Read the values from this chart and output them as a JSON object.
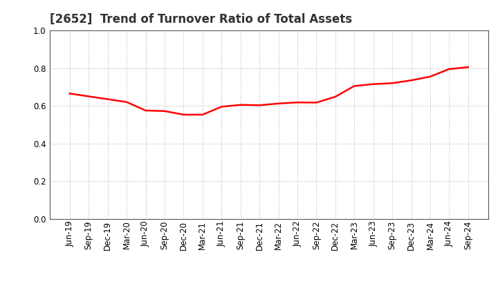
{
  "title": "[2652]  Trend of Turnover Ratio of Total Assets",
  "x_labels": [
    "Jun-19",
    "Sep-19",
    "Dec-19",
    "Mar-20",
    "Jun-20",
    "Sep-20",
    "Dec-20",
    "Mar-21",
    "Jun-21",
    "Sep-21",
    "Dec-21",
    "Mar-22",
    "Jun-22",
    "Sep-22",
    "Dec-22",
    "Mar-23",
    "Jun-23",
    "Sep-23",
    "Dec-23",
    "Mar-24",
    "Jun-24",
    "Sep-24"
  ],
  "y_values": [
    0.665,
    0.65,
    0.635,
    0.62,
    0.575,
    0.572,
    0.553,
    0.553,
    0.595,
    0.605,
    0.603,
    0.612,
    0.618,
    0.617,
    0.648,
    0.705,
    0.715,
    0.72,
    0.735,
    0.755,
    0.795,
    0.805
  ],
  "line_color": "#FF0000",
  "line_width": 1.8,
  "ylim": [
    0.0,
    1.0
  ],
  "yticks": [
    0.0,
    0.2,
    0.4,
    0.6,
    0.8,
    1.0
  ],
  "grid_color": "#999999",
  "bg_color": "#ffffff",
  "title_fontsize": 12,
  "tick_fontsize": 8.5,
  "spine_color": "#555555"
}
